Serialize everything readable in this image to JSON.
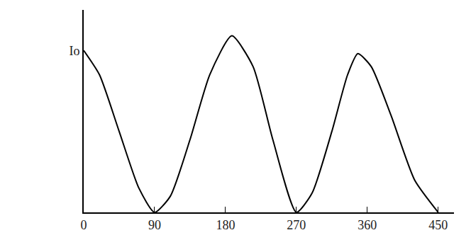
{
  "chart_data": {
    "type": "line",
    "x": [
      0,
      20,
      45,
      70,
      90,
      110,
      135,
      160,
      188,
      215,
      240,
      270,
      290,
      315,
      335,
      348,
      365,
      390,
      420,
      450
    ],
    "values": [
      1,
      0.85,
      0.5,
      0.15,
      0,
      0.1,
      0.45,
      0.85,
      1.09,
      0.9,
      0.45,
      0,
      0.12,
      0.5,
      0.85,
      0.98,
      0.9,
      0.6,
      0.2,
      0
    ],
    "color": "#000000",
    "xlim": [
      0,
      470
    ],
    "xticks": [
      0,
      90,
      180,
      270,
      360,
      450
    ],
    "ylim": [
      0,
      1.25
    ],
    "yticks": [
      {
        "value": 1,
        "label": "Io"
      }
    ],
    "grid": false
  }
}
